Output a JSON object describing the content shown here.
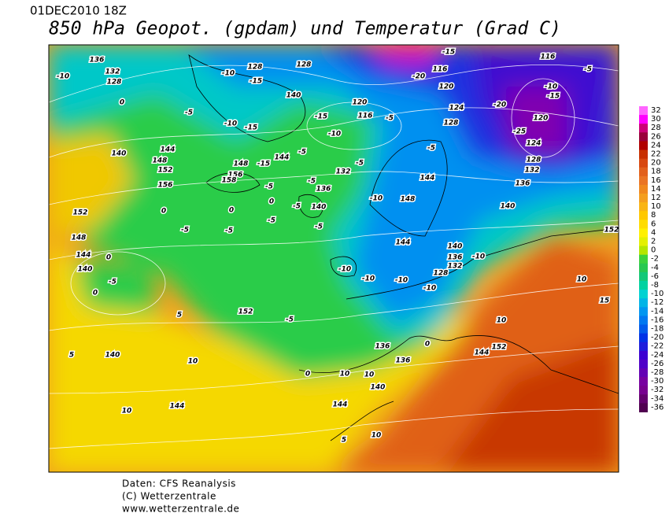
{
  "header": {
    "date": "01DEC2010 18Z",
    "title": "850 hPa Geopot. (gpdam) und  Temperatur (Grad C)"
  },
  "footer": {
    "source": "Daten: CFS Reanalysis",
    "copyright": "(C) Wetterzentrale",
    "url": "www.wetterzentrale.de"
  },
  "colorbar": {
    "labels": [
      "32",
      "30",
      "28",
      "26",
      "24",
      "22",
      "20",
      "18",
      "16",
      "14",
      "12",
      "10",
      "8",
      "6",
      "4",
      "2",
      "0",
      "-2",
      "-4",
      "-6",
      "-8",
      "-10",
      "-12",
      "-14",
      "-16",
      "-18",
      "-20",
      "-22",
      "-24",
      "-26",
      "-28",
      "-30",
      "-32",
      "-34",
      "-36"
    ],
    "colors": [
      "#ff66ff",
      "#ff00ff",
      "#cc0077",
      "#99003a",
      "#b00000",
      "#c83000",
      "#d84810",
      "#e2601c",
      "#ea7424",
      "#f0881e",
      "#f49e1e",
      "#f9b414",
      "#ffc800",
      "#ffdc00",
      "#fff000",
      "#e4f000",
      "#b4e600",
      "#3cd23c",
      "#28c850",
      "#14c878",
      "#00d2a0",
      "#00d2d2",
      "#00b4e6",
      "#0096f0",
      "#0078f0",
      "#005aeb",
      "#0032e6",
      "#1e1edc",
      "#3c00d2",
      "#5000c8",
      "#6400b4",
      "#7800a0",
      "#780090",
      "#64006e",
      "#500050"
    ]
  },
  "map": {
    "contour_labels": [
      "136",
      "-10",
      "132",
      "128",
      "0",
      "-5",
      "140",
      "144",
      "148",
      "152",
      "156",
      "132",
      "138",
      "152",
      "148",
      "144",
      "140",
      "0",
      "-5",
      "0",
      "5",
      "10",
      "5",
      "140",
      "10",
      "144",
      "152",
      "-5",
      "0",
      "10",
      "10",
      "140",
      "144",
      "10",
      "5",
      "136",
      "136",
      "0",
      "144",
      "152",
      "10",
      "15",
      "10",
      "152",
      "140",
      "136",
      "132",
      "128",
      "124",
      "120",
      "-10",
      "-15",
      "-20",
      "-25",
      "116",
      "-5",
      "-15",
      "-20",
      "116",
      "120",
      "124",
      "128",
      "120",
      "116",
      "-10",
      "-5",
      "-5",
      "132",
      "-5",
      "144",
      "-10",
      "148",
      "144",
      "140",
      "136",
      "132",
      "128",
      "-10",
      "-10",
      "-10",
      "-10",
      "-10",
      "-5",
      "-5",
      "-5",
      "-5",
      "0",
      "0",
      "0",
      "-5",
      "140",
      "136",
      "-5",
      "-5",
      "144",
      "-15",
      "148",
      "156",
      "158",
      "-10",
      "-15",
      "-5",
      "128",
      "-15",
      "-10",
      "140",
      "-15",
      "128"
    ]
  }
}
